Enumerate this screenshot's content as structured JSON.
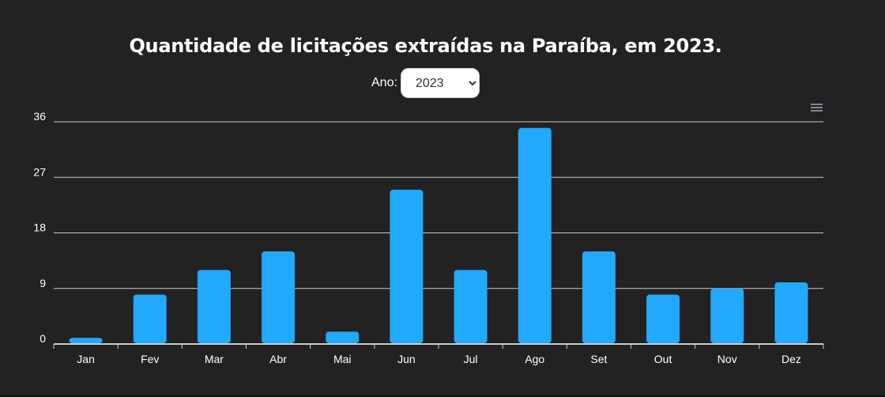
{
  "header": {
    "title": "Quantidade de licitações extraídas na Paraíba, em 2023."
  },
  "filter": {
    "label": "Ano:",
    "selected": "2023"
  },
  "toolbar": {
    "menu_icon": "hamburger-menu-icon"
  },
  "chart_data": {
    "type": "bar",
    "categories": [
      "Jan",
      "Fev",
      "Mar",
      "Abr",
      "Mai",
      "Jun",
      "Jul",
      "Ago",
      "Set",
      "Out",
      "Nov",
      "Dez"
    ],
    "values": [
      1,
      8,
      12,
      15,
      2,
      25,
      12,
      35,
      15,
      8,
      9,
      10
    ],
    "ylim": [
      0,
      36
    ],
    "yticks": [
      0,
      9,
      18,
      27,
      36
    ],
    "grid": true,
    "colors": {
      "bar": "#22a8fd",
      "grid": "#cccccc",
      "axis": "#cccccc",
      "text": "#ffffff"
    }
  }
}
